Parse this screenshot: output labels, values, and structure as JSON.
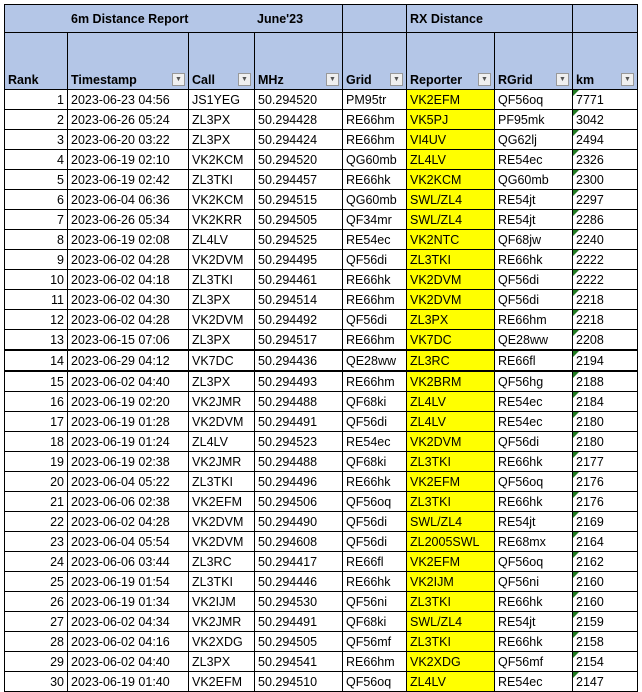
{
  "header": {
    "title": "6m Distance Report",
    "month": "June'23",
    "rx_title": "RX Distance",
    "columns": [
      "Rank",
      "Timestamp",
      "Call",
      "MHz",
      "Grid",
      "Reporter",
      "RGrid",
      "km"
    ]
  },
  "colors": {
    "header_bg": "#b4c6e7",
    "reporter_highlight": "#ffff00"
  },
  "rows": [
    [
      "1",
      "2023-06-23 04:56",
      "JS1YEG",
      "50.294520",
      "PM95tr",
      "VK2EFM",
      "QF56oq",
      "7771"
    ],
    [
      "2",
      "2023-06-26 05:24",
      "ZL3PX",
      "50.294428",
      "RE66hm",
      "VK5PJ",
      "PF95mk",
      "3042"
    ],
    [
      "3",
      "2023-06-20 03:22",
      "ZL3PX",
      "50.294424",
      "RE66hm",
      "VI4UV",
      "QG62lj",
      "2494"
    ],
    [
      "4",
      "2023-06-19 02:10",
      "VK2KCM",
      "50.294520",
      "QG60mb",
      "ZL4LV",
      "RE54ec",
      "2326"
    ],
    [
      "5",
      "2023-06-19 02:42",
      "ZL3TKI",
      "50.294457",
      "RE66hk",
      "VK2KCM",
      "QG60mb",
      "2300"
    ],
    [
      "6",
      "2023-06-04 06:36",
      "VK2KCM",
      "50.294515",
      "QG60mb",
      "SWL/ZL4",
      "RE54jt",
      "2297"
    ],
    [
      "7",
      "2023-06-26 05:34",
      "VK2KRR",
      "50.294505",
      "QF34mr",
      "SWL/ZL4",
      "RE54jt",
      "2286"
    ],
    [
      "8",
      "2023-06-19 02:08",
      "ZL4LV",
      "50.294525",
      "RE54ec",
      "VK2NTC",
      "QF68jw",
      "2240"
    ],
    [
      "9",
      "2023-06-02 04:28",
      "VK2DVM",
      "50.294495",
      "QF56di",
      "ZL3TKI",
      "RE66hk",
      "2222"
    ],
    [
      "10",
      "2023-06-02 04:18",
      "ZL3TKI",
      "50.294461",
      "RE66hk",
      "VK2DVM",
      "QF56di",
      "2222"
    ],
    [
      "11",
      "2023-06-02 04:30",
      "ZL3PX",
      "50.294514",
      "RE66hm",
      "VK2DVM",
      "QF56di",
      "2218"
    ],
    [
      "12",
      "2023-06-02 04:28",
      "VK2DVM",
      "50.294492",
      "QF56di",
      "ZL3PX",
      "RE66hm",
      "2218"
    ],
    [
      "13",
      "2023-06-15 07:06",
      "ZL3PX",
      "50.294517",
      "RE66hm",
      "VK7DC",
      "QE28ww",
      "2208"
    ],
    [
      "14",
      "2023-06-29 04:12",
      "VK7DC",
      "50.294436",
      "QE28ww",
      "ZL3RC",
      "RE66fl",
      "2194"
    ],
    [
      "15",
      "2023-06-02 04:40",
      "ZL3PX",
      "50.294493",
      "RE66hm",
      "VK2BRM",
      "QF56hg",
      "2188"
    ],
    [
      "16",
      "2023-06-19 02:20",
      "VK2JMR",
      "50.294488",
      "QF68ki",
      "ZL4LV",
      "RE54ec",
      "2184"
    ],
    [
      "17",
      "2023-06-19 01:28",
      "VK2DVM",
      "50.294491",
      "QF56di",
      "ZL4LV",
      "RE54ec",
      "2180"
    ],
    [
      "18",
      "2023-06-19 01:24",
      "ZL4LV",
      "50.294523",
      "RE54ec",
      "VK2DVM",
      "QF56di",
      "2180"
    ],
    [
      "19",
      "2023-06-19 02:38",
      "VK2JMR",
      "50.294488",
      "QF68ki",
      "ZL3TKI",
      "RE66hk",
      "2177"
    ],
    [
      "20",
      "2023-06-04 05:22",
      "ZL3TKI",
      "50.294496",
      "RE66hk",
      "VK2EFM",
      "QF56oq",
      "2176"
    ],
    [
      "21",
      "2023-06-06 02:38",
      "VK2EFM",
      "50.294506",
      "QF56oq",
      "ZL3TKI",
      "RE66hk",
      "2176"
    ],
    [
      "22",
      "2023-06-02 04:28",
      "VK2DVM",
      "50.294490",
      "QF56di",
      "SWL/ZL4",
      "RE54jt",
      "2169"
    ],
    [
      "23",
      "2023-06-04 05:54",
      "VK2DVM",
      "50.294608",
      "QF56di",
      "ZL2005SWL",
      "RE68mx",
      "2164"
    ],
    [
      "24",
      "2023-06-06 03:44",
      "ZL3RC",
      "50.294417",
      "RE66fl",
      "VK2EFM",
      "QF56oq",
      "2162"
    ],
    [
      "25",
      "2023-06-19 01:54",
      "ZL3TKI",
      "50.294446",
      "RE66hk",
      "VK2IJM",
      "QF56ni",
      "2160"
    ],
    [
      "26",
      "2023-06-19 01:34",
      "VK2IJM",
      "50.294530",
      "QF56ni",
      "ZL3TKI",
      "RE66hk",
      "2160"
    ],
    [
      "27",
      "2023-06-02 04:34",
      "VK2JMR",
      "50.294491",
      "QF68ki",
      "SWL/ZL4",
      "RE54jt",
      "2159"
    ],
    [
      "28",
      "2023-06-02 04:16",
      "VK2XDG",
      "50.294505",
      "QF56mf",
      "ZL3TKI",
      "RE66hk",
      "2158"
    ],
    [
      "29",
      "2023-06-02 04:40",
      "ZL3PX",
      "50.294541",
      "RE66hm",
      "VK2XDG",
      "QF56mf",
      "2154"
    ],
    [
      "30",
      "2023-06-19 01:40",
      "VK2EFM",
      "50.294510",
      "QF56oq",
      "ZL4LV",
      "RE54ec",
      "2147"
    ]
  ]
}
